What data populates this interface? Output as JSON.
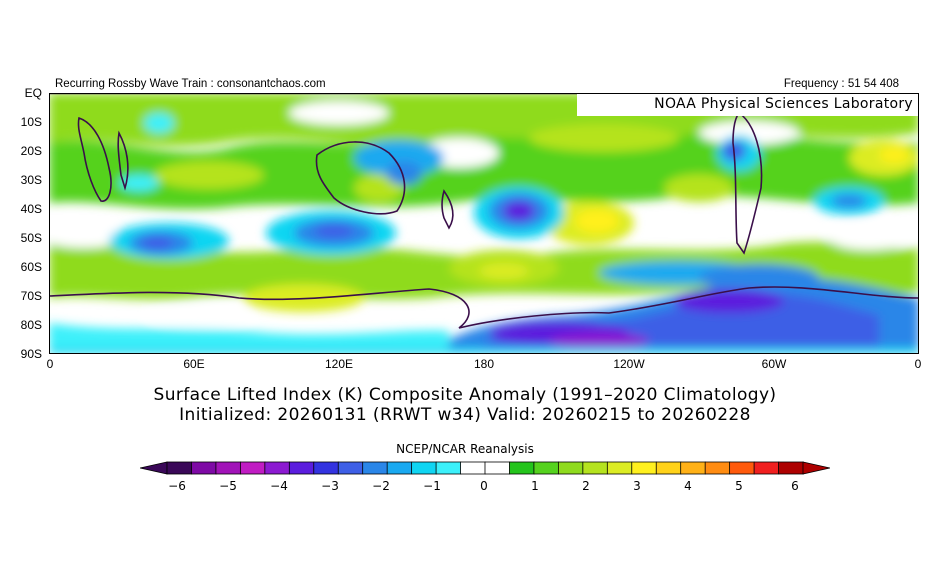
{
  "header": {
    "left": "Recurring Rossby Wave Train : consonantchaos.com",
    "right": "Frequency : 51 54 408"
  },
  "credit": "NOAA Physical Sciences Laboratory",
  "map": {
    "lat_labels": [
      "EQ",
      "10S",
      "20S",
      "30S",
      "40S",
      "50S",
      "60S",
      "70S",
      "80S",
      "90S"
    ],
    "lon_labels": [
      "0",
      "60E",
      "120E",
      "180",
      "120W",
      "60W",
      "0"
    ],
    "lat_range": [
      -90,
      0
    ],
    "lon_range": [
      0,
      360
    ]
  },
  "title_line1": "Surface Lifted Index (K) Composite Anomaly (1991–2020 Climatology)",
  "title_line2": "Initialized: 20260131 (RRWT w34) Valid: 20260215 to 20260228",
  "colorbar": {
    "title": "NCEP/NCAR Reanalysis",
    "tick_labels": [
      "−6",
      "−5",
      "−4",
      "−3",
      "−2",
      "−1",
      "0",
      "1",
      "2",
      "3",
      "4",
      "5",
      "6"
    ],
    "bins": [
      -6.0,
      -5.5,
      -5.0,
      -4.5,
      -4.0,
      -3.5,
      -3.0,
      -2.5,
      -2.0,
      -1.5,
      -1.0,
      -0.5,
      0.0,
      0.5,
      1.0,
      1.5,
      2.0,
      2.5,
      3.0,
      3.5,
      4.0,
      4.5,
      5.0,
      5.5,
      6.0
    ],
    "colors": [
      "#3a0858",
      "#7e0aa5",
      "#a113b8",
      "#c01cc3",
      "#8c1ad1",
      "#5b1dde",
      "#3333e0",
      "#3e5fe6",
      "#2a86e8",
      "#1aa9f0",
      "#10d5f2",
      "#3cf0fa",
      "#ffffff",
      "#ffffff",
      "#24c41c",
      "#55d21e",
      "#8fdb1e",
      "#b5e31f",
      "#dcec24",
      "#fff01f",
      "#ffd21a",
      "#ffb117",
      "#ff8c12",
      "#ff5a0c",
      "#f01f1f",
      "#ad0000"
    ],
    "under_color": "#3a0858",
    "over_color": "#ad0000"
  }
}
